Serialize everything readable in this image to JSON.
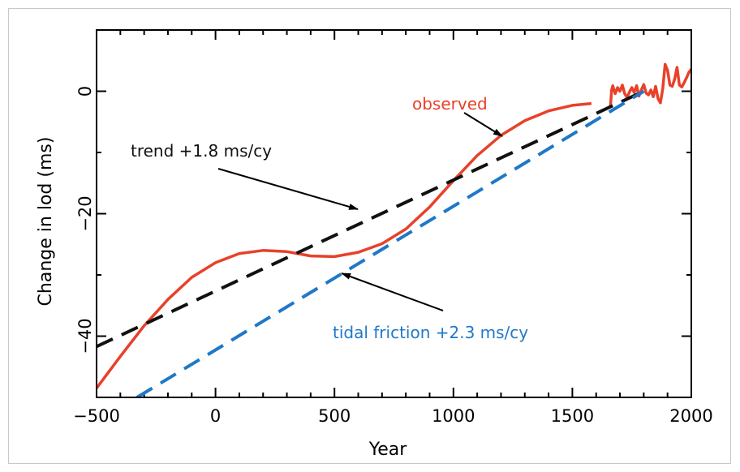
{
  "chart_data": {
    "type": "line",
    "title": "",
    "xlabel": "Year",
    "ylabel": "Change in lod (ms)",
    "xlim": [
      -500,
      2000
    ],
    "ylim": [
      -50,
      10
    ],
    "xticks": [
      -500,
      0,
      500,
      1000,
      1500,
      2000
    ],
    "xtick_labels": [
      "−500",
      "0",
      "500",
      "1000",
      "1500",
      "2000"
    ],
    "yticks": [
      -40,
      -20,
      0
    ],
    "ytick_labels": [
      "−40",
      "−20",
      "0"
    ],
    "grid": false,
    "series": [
      {
        "name": "observed",
        "color": "#e8412a",
        "style": "solid",
        "x": [
          -500,
          -400,
          -300,
          -200,
          -100,
          0,
          100,
          200,
          300,
          400,
          500,
          600,
          700,
          800,
          900,
          1000,
          1100,
          1200,
          1300,
          1400,
          1500,
          1580
        ],
        "y": [
          -48.5,
          -43.3,
          -38.3,
          -34.0,
          -30.4,
          -28.0,
          -26.5,
          -26.0,
          -26.2,
          -26.9,
          -27.0,
          -26.3,
          -24.9,
          -22.5,
          -18.9,
          -14.6,
          -10.5,
          -7.2,
          -4.8,
          -3.2,
          -2.3,
          -2.0
        ]
      },
      {
        "name": "observed",
        "color": "#e8412a",
        "style": "solid",
        "x": [
          1660,
          1665,
          1670,
          1680,
          1690,
          1700,
          1710,
          1720,
          1730,
          1740,
          1750,
          1760,
          1770,
          1780,
          1790,
          1800,
          1810,
          1820,
          1830,
          1840,
          1850,
          1860,
          1870,
          1880,
          1890,
          1900,
          1910,
          1920,
          1930,
          1940,
          1950,
          1960,
          1970,
          1980,
          1990,
          2000
        ],
        "y": [
          -2.6,
          0.2,
          0.9,
          -0.4,
          0.6,
          0.0,
          1.0,
          -0.4,
          -1.0,
          -0.1,
          0.6,
          -0.2,
          0.9,
          -0.8,
          0.2,
          1.1,
          -0.3,
          -0.6,
          0.2,
          -0.9,
          0.8,
          -1.2,
          -1.9,
          0.4,
          4.4,
          3.4,
          1.0,
          0.8,
          2.0,
          3.9,
          1.0,
          0.7,
          1.4,
          2.2,
          3.1,
          3.6
        ]
      },
      {
        "name": "trend +1.8 ms/cy",
        "color": "#111111",
        "style": "dashed",
        "x": [
          -500,
          1800
        ],
        "y": [
          -41.7,
          0.0
        ]
      },
      {
        "name": "tidal friction +2.3 ms/cy",
        "color": "#1f78c8",
        "style": "dashed",
        "x": [
          -330,
          1800
        ],
        "y": [
          -50.0,
          0.0
        ]
      }
    ],
    "annotations": [
      {
        "text": "observed",
        "color": "#e8412a"
      },
      {
        "text": "trend +1.8 ms/cy",
        "color": "#111111"
      },
      {
        "text": "tidal friction +2.3 ms/cy",
        "color": "#1f78c8"
      }
    ]
  }
}
